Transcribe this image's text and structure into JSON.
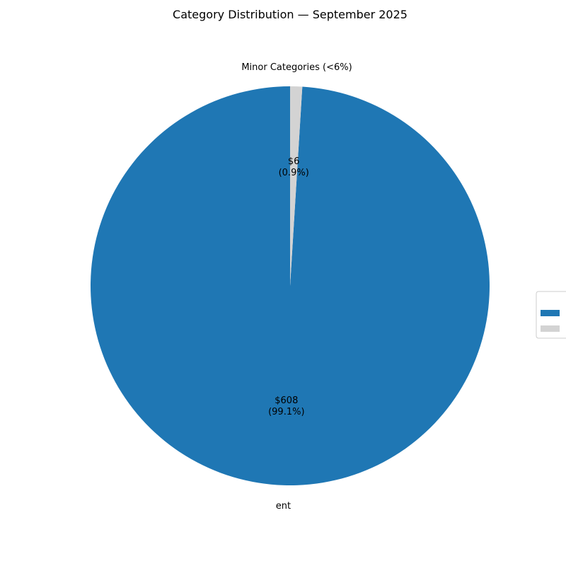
{
  "chart_data": {
    "type": "pie",
    "title": "Category Distribution — September 2025",
    "slices": [
      {
        "label": "ent",
        "value": 608,
        "value_label": "$608",
        "percent_label": "(99.1%)",
        "color": "#1f77b4"
      },
      {
        "label": "Minor Categories (<6%)",
        "value": 6,
        "value_label": "$6",
        "percent_label": "(0.9%)",
        "color": "#d3d3d3"
      }
    ],
    "start_angle_deg": 90,
    "direction": "counterclockwise",
    "legend": {
      "placement": "right",
      "entries": [
        {
          "label": "",
          "color": "#1f77b4"
        },
        {
          "label": "",
          "color": "#d3d3d3"
        }
      ]
    }
  }
}
